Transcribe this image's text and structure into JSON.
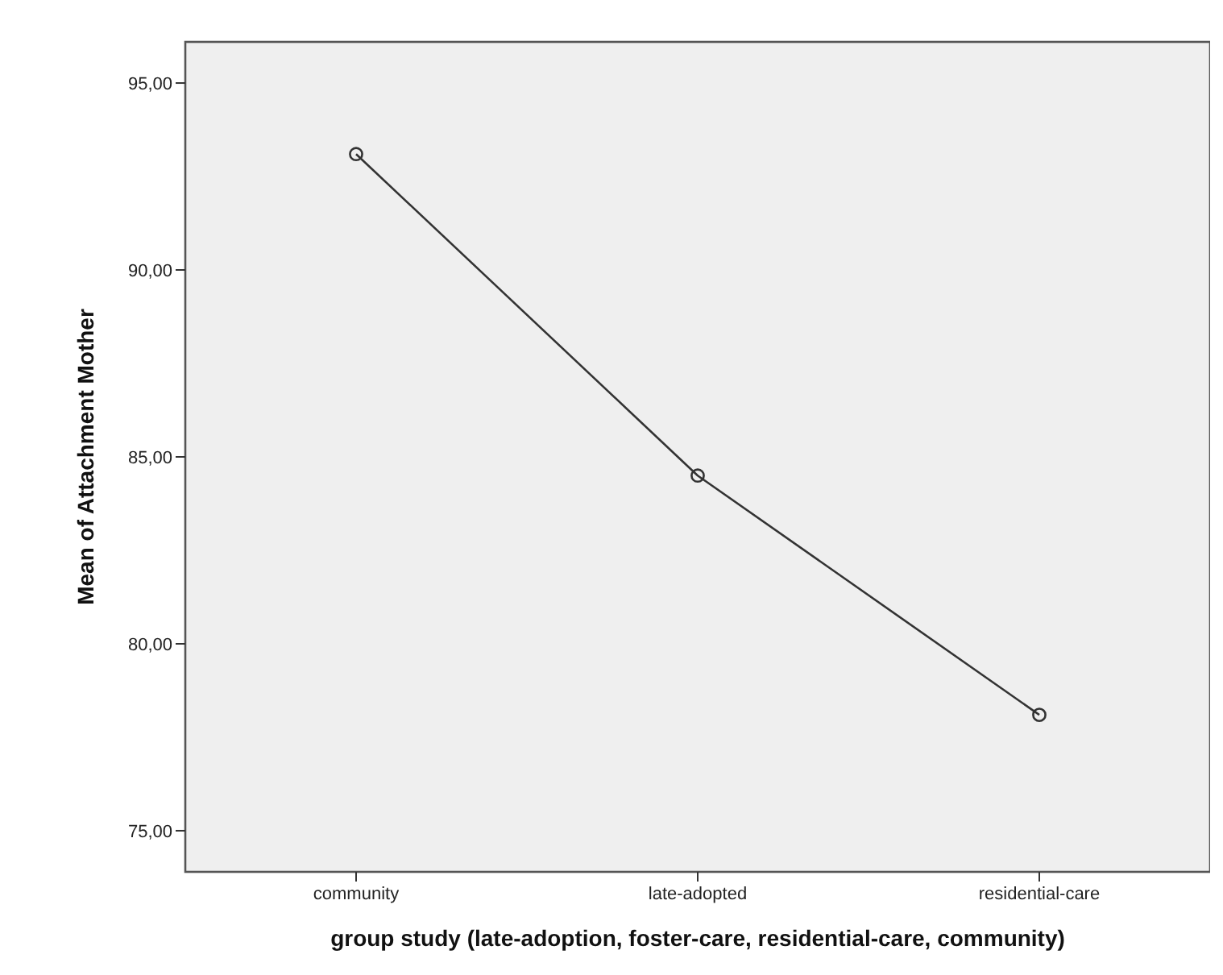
{
  "chart_data": {
    "type": "line",
    "xlabel": "group study (late-adoption, foster-care, residential-care, community)",
    "ylabel": "Mean of Attachment Mother",
    "categories": [
      "community",
      "late-adopted",
      "residential-care"
    ],
    "series": [
      {
        "color": "#333333",
        "values": [
          93.1,
          84.5,
          78.1
        ]
      }
    ],
    "ylim": [
      73.9,
      96.1
    ],
    "yticks": [
      {
        "value": 75,
        "label": "75,00"
      },
      {
        "value": 80,
        "label": "80,00"
      },
      {
        "value": 85,
        "label": "85,00"
      },
      {
        "value": 90,
        "label": "90,00"
      },
      {
        "value": 95,
        "label": "95,00"
      }
    ],
    "marker": "circle",
    "line_style": "solid"
  }
}
